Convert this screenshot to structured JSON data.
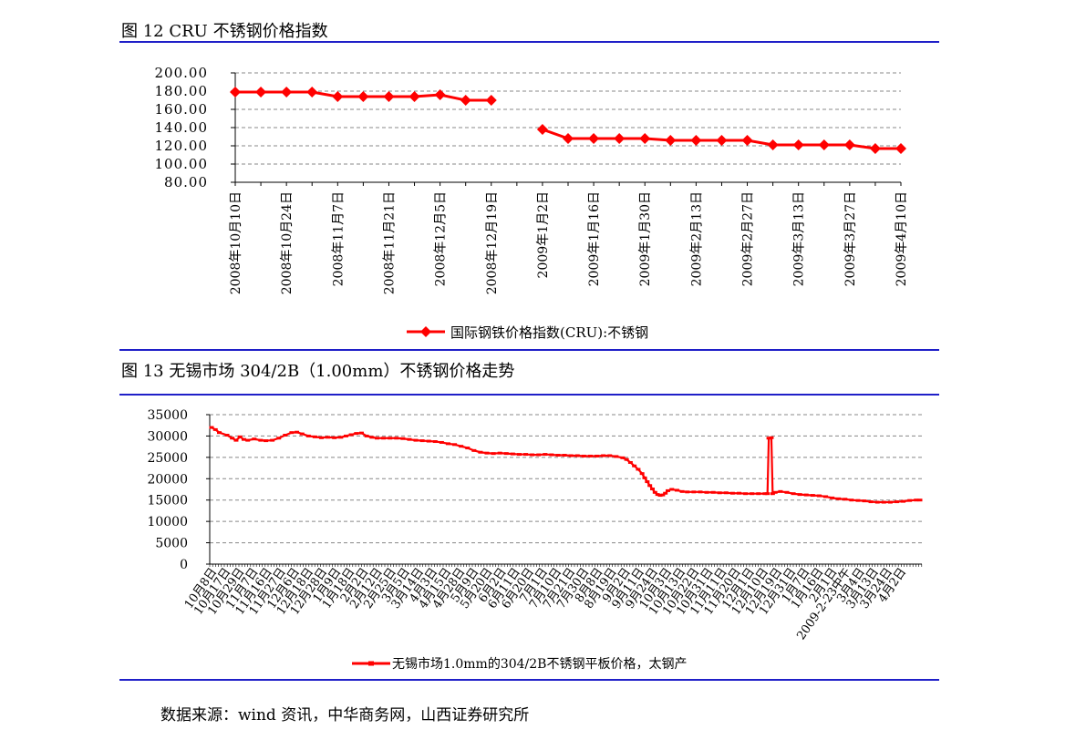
{
  "figures": [
    {
      "title": "图 12 CRU 不锈钢价格指数",
      "chart_data": {
        "type": "line",
        "legend_position": "bottom",
        "grid": "horizontal-dashed",
        "ylim": [
          80,
          200
        ],
        "y_ticks": [
          "80.00",
          "100.00",
          "120.00",
          "140.00",
          "160.00",
          "180.00",
          "200.00"
        ],
        "x_tick_labels": [
          "2008年10月10日",
          "2008年10月24日",
          "2008年11月7日",
          "2008年11月21日",
          "2008年12月5日",
          "2008年12月19日",
          "2009年1月2日",
          "2009年1月16日",
          "2009年1月30日",
          "2009年2月13日",
          "2009年2月27日",
          "2009年3月13日",
          "2009年3月27日",
          "2009年4月10日"
        ],
        "x_count": 27,
        "series": [
          {
            "name": "国际钢铁价格指数(CRU):不锈钢",
            "color": "#ff0000",
            "marker": "diamond",
            "segments": [
              {
                "start_index": 0,
                "values": [
                  179,
                  179,
                  179,
                  179,
                  174,
                  174,
                  174,
                  174,
                  176,
                  170,
                  170
                ]
              },
              {
                "start_index": 12,
                "values": [
                  138,
                  128,
                  128,
                  128,
                  128,
                  126,
                  126,
                  126,
                  126,
                  121,
                  121,
                  121,
                  121,
                  117,
                  117
                ]
              }
            ]
          }
        ]
      }
    },
    {
      "title": "图 13 无锡市场 304/2B（1.00mm）不锈钢价格走势",
      "chart_data": {
        "type": "line",
        "legend_position": "bottom",
        "grid": "horizontal-dashed",
        "ylim": [
          0,
          35000
        ],
        "y_ticks": [
          "0",
          "5000",
          "10000",
          "15000",
          "20000",
          "25000",
          "30000",
          "35000"
        ],
        "x_tick_labels": [
          "10月8日",
          "10月17日",
          "10月29日",
          "11月7日",
          "11月16日",
          "11月27日",
          "12月6日",
          "12月18日",
          "12月28日",
          "1月9日",
          "1月18日",
          "2月2日",
          "2月12日",
          "2月25日",
          "3月5日",
          "3月14日",
          "4月3日",
          "4月15日",
          "4月28日",
          "5月9日",
          "5月20日",
          "6月2日",
          "6月11日",
          "6月20日",
          "7月1日",
          "7月10日",
          "7月21日",
          "7月30日",
          "8月8日",
          "8月19日",
          "9月2日",
          "9月11日",
          "9月24日",
          "10月3日",
          "10月13日",
          "10月22日",
          "10月31日",
          "11月11日",
          "11月20日",
          "12月1日",
          "12月10日",
          "12月19日",
          "12月31日",
          "1月7日",
          "1月16日",
          "2月1日",
          "2009-2-23中午",
          "3月4日",
          "3月13日",
          "3月24日",
          "4月2日"
        ],
        "series": [
          {
            "name": "无锡市场1.0mm的304/2B不锈钢平板价格，太钢产",
            "color": "#ff0000",
            "marker": "dash",
            "points": [
              [
                0,
                32000
              ],
              [
                3,
                31500
              ],
              [
                6,
                30800
              ],
              [
                12,
                30200
              ],
              [
                16,
                29500
              ],
              [
                19,
                29000
              ],
              [
                22,
                29800
              ],
              [
                25,
                29200
              ],
              [
                28,
                29000
              ],
              [
                33,
                29300
              ],
              [
                38,
                29000
              ],
              [
                42,
                28900
              ],
              [
                47,
                29000
              ],
              [
                52,
                29500
              ],
              [
                57,
                30200
              ],
              [
                62,
                30800
              ],
              [
                66,
                30900
              ],
              [
                70,
                30500
              ],
              [
                75,
                30000
              ],
              [
                80,
                29800
              ],
              [
                85,
                29600
              ],
              [
                90,
                29700
              ],
              [
                95,
                29600
              ],
              [
                100,
                29700
              ],
              [
                104,
                30000
              ],
              [
                108,
                30300
              ],
              [
                112,
                30600
              ],
              [
                116,
                30700
              ],
              [
                120,
                30000
              ],
              [
                124,
                29700
              ],
              [
                128,
                29500
              ],
              [
                133,
                29500
              ],
              [
                138,
                29500
              ],
              [
                143,
                29500
              ],
              [
                148,
                29400
              ],
              [
                153,
                29200
              ],
              [
                158,
                29000
              ],
              [
                163,
                28900
              ],
              [
                168,
                28800
              ],
              [
                173,
                28700
              ],
              [
                178,
                28500
              ],
              [
                183,
                28200
              ],
              [
                188,
                28000
              ],
              [
                193,
                27600
              ],
              [
                198,
                27200
              ],
              [
                203,
                26600
              ],
              [
                208,
                26200
              ],
              [
                213,
                26000
              ],
              [
                218,
                25900
              ],
              [
                223,
                26000
              ],
              [
                228,
                25900
              ],
              [
                233,
                25800
              ],
              [
                238,
                25700
              ],
              [
                243,
                25700
              ],
              [
                248,
                25600
              ],
              [
                253,
                25600
              ],
              [
                258,
                25700
              ],
              [
                263,
                25600
              ],
              [
                268,
                25500
              ],
              [
                273,
                25500
              ],
              [
                278,
                25400
              ],
              [
                283,
                25400
              ],
              [
                288,
                25300
              ],
              [
                293,
                25300
              ],
              [
                298,
                25300
              ],
              [
                303,
                25400
              ],
              [
                308,
                25400
              ],
              [
                313,
                25200
              ],
              [
                318,
                24900
              ],
              [
                321,
                24500
              ],
              [
                324,
                23800
              ],
              [
                327,
                23000
              ],
              [
                330,
                22200
              ],
              [
                333,
                21200
              ],
              [
                335,
                20200
              ],
              [
                337,
                19300
              ],
              [
                339,
                18400
              ],
              [
                341,
                17600
              ],
              [
                343,
                16800
              ],
              [
                345,
                16300
              ],
              [
                347,
                16100
              ],
              [
                349,
                16200
              ],
              [
                351,
                16600
              ],
              [
                353,
                17200
              ],
              [
                356,
                17500
              ],
              [
                360,
                17300
              ],
              [
                364,
                17000
              ],
              [
                368,
                16900
              ],
              [
                373,
                16900
              ],
              [
                378,
                16900
              ],
              [
                383,
                16800
              ],
              [
                388,
                16800
              ],
              [
                393,
                16700
              ],
              [
                398,
                16700
              ],
              [
                403,
                16600
              ],
              [
                408,
                16600
              ],
              [
                413,
                16500
              ],
              [
                418,
                16500
              ],
              [
                423,
                16500
              ],
              [
                428,
                16500
              ],
              [
                430,
                16500
              ],
              [
                431,
                29500
              ],
              [
                433,
                29600
              ],
              [
                434,
                16500
              ],
              [
                436,
                16800
              ],
              [
                440,
                17000
              ],
              [
                445,
                16800
              ],
              [
                450,
                16500
              ],
              [
                455,
                16300
              ],
              [
                460,
                16200
              ],
              [
                465,
                16100
              ],
              [
                470,
                16000
              ],
              [
                475,
                15800
              ],
              [
                480,
                15500
              ],
              [
                485,
                15300
              ],
              [
                490,
                15200
              ],
              [
                495,
                15000
              ],
              [
                500,
                14900
              ],
              [
                505,
                14800
              ],
              [
                510,
                14600
              ],
              [
                515,
                14500
              ],
              [
                520,
                14500
              ],
              [
                525,
                14500
              ],
              [
                530,
                14600
              ],
              [
                535,
                14700
              ],
              [
                540,
                14900
              ],
              [
                545,
                15000
              ],
              [
                548,
                15000
              ]
            ]
          }
        ]
      }
    }
  ],
  "source": "数据来源：wind 资讯，中华商务网，山西证券研究所"
}
